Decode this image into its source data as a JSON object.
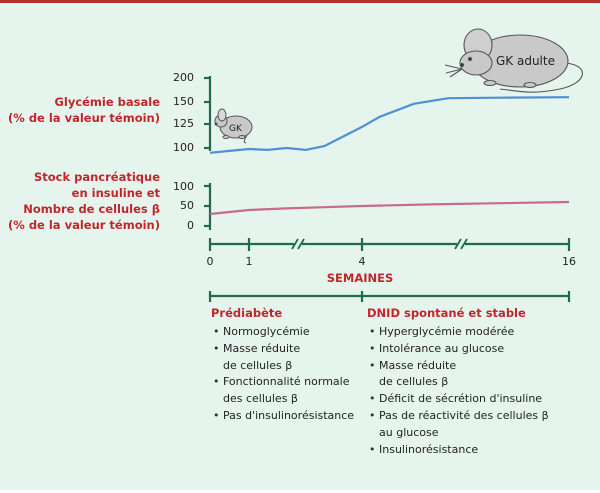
{
  "top_panel": {
    "label_line1": "Glycémie basale",
    "label_line2": "(% de la valeur témoin)",
    "ticks": [
      "200",
      "150",
      "125",
      "100"
    ]
  },
  "bottom_panel": {
    "label_line1": "Stock pancréatique",
    "label_line2": "en insuline et",
    "label_line3": "Nombre de cellules β",
    "label_line4": "(% de la valeur témoin)",
    "ticks": [
      "100",
      "50",
      "0"
    ]
  },
  "x_axis": {
    "title": "SEMAINES",
    "ticks": [
      "0",
      "1",
      "4",
      "16"
    ]
  },
  "mice": {
    "young_label": "GK",
    "adult_label": "GK adulte"
  },
  "phases": {
    "left": {
      "title": "Prédiabète",
      "items": [
        {
          "line1": "Normoglycémie"
        },
        {
          "line1": "Masse réduite",
          "line2": "de cellules β"
        },
        {
          "line1": "Fonctionnalité normale",
          "line2": "des cellules β"
        },
        {
          "line1": "Pas d'insulinorésistance"
        }
      ]
    },
    "right": {
      "title": "DNID spontané et stable",
      "items": [
        {
          "line1": "Hyperglycémie modérée"
        },
        {
          "line1": "Intolérance au glucose"
        },
        {
          "line1": "Masse réduite",
          "line2": "de cellules β"
        },
        {
          "line1": "Déficit de sécrétion d'insuline"
        },
        {
          "line1": "Pas de réactivité des cellules β",
          "line2": "au glucose"
        },
        {
          "line1": "Insulinorésistance"
        }
      ]
    }
  },
  "colors": {
    "glycemia_line": "#4d90d6",
    "stock_line": "#c86a8e",
    "axis": "#1f6b4f",
    "label_red": "#c0262c"
  },
  "chart_data": {
    "type": "line",
    "x_label": "SEMAINES",
    "series": [
      {
        "name": "Glycémie basale (% de la valeur témoin)",
        "points": [
          [
            0,
            95
          ],
          [
            0.5,
            97
          ],
          [
            1,
            99
          ],
          [
            1.5,
            98
          ],
          [
            2,
            100
          ],
          [
            2.5,
            98
          ],
          [
            3,
            102
          ],
          [
            3.5,
            112
          ],
          [
            4,
            122
          ],
          [
            5,
            133
          ],
          [
            7,
            148
          ],
          [
            9,
            158
          ],
          [
            12,
            159
          ],
          [
            16,
            160
          ]
        ]
      },
      {
        "name": "Stock pancréatique en insuline et nombre de cellules β (% de la valeur témoin)",
        "points": [
          [
            0,
            30
          ],
          [
            1,
            40
          ],
          [
            2,
            44
          ],
          [
            3,
            47
          ],
          [
            4,
            50
          ],
          [
            6,
            52
          ],
          [
            8,
            54
          ],
          [
            12,
            57
          ],
          [
            16,
            60
          ]
        ]
      }
    ]
  }
}
